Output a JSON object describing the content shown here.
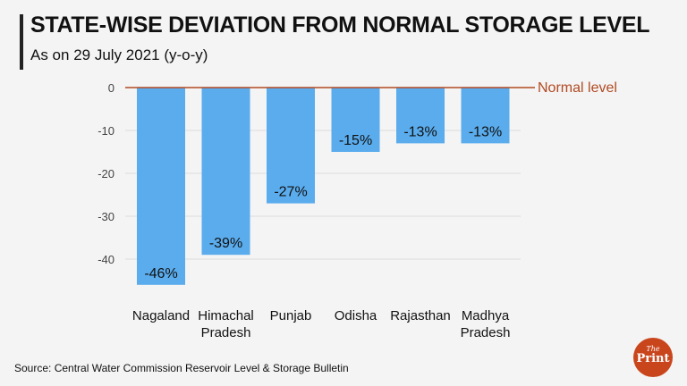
{
  "chart_data": {
    "type": "bar",
    "title": "STATE-WISE DEVIATION FROM NORMAL STORAGE LEVEL",
    "subtitle": "As on 29 July 2021 (y-o-y)",
    "categories": [
      [
        "Nagaland"
      ],
      [
        "Himachal",
        "Pradesh"
      ],
      [
        "Punjab"
      ],
      [
        "Odisha"
      ],
      [
        "Rajasthan"
      ],
      [
        "Madhya",
        "Pradesh"
      ]
    ],
    "values": [
      -46,
      -39,
      -27,
      -15,
      -13,
      -13
    ],
    "data_labels": [
      "-46%",
      "-39%",
      "-27%",
      "-15%",
      "-13%",
      "-13%"
    ],
    "yticks": [
      0,
      -10,
      -20,
      -30,
      -40
    ],
    "ylim": [
      -50,
      0
    ],
    "reference_line": {
      "value": 0,
      "label": "Normal level"
    },
    "xlabel": "",
    "ylabel": "",
    "grid": true
  },
  "source": "Source: Central Water Commission Reservoir Level & Storage Bulletin",
  "logo": {
    "top": "The",
    "bottom": "Print"
  },
  "colors": {
    "bar": "#5aaced",
    "reference": "#b14a22",
    "grid": "#dddddd",
    "accent": "#c9461d"
  }
}
